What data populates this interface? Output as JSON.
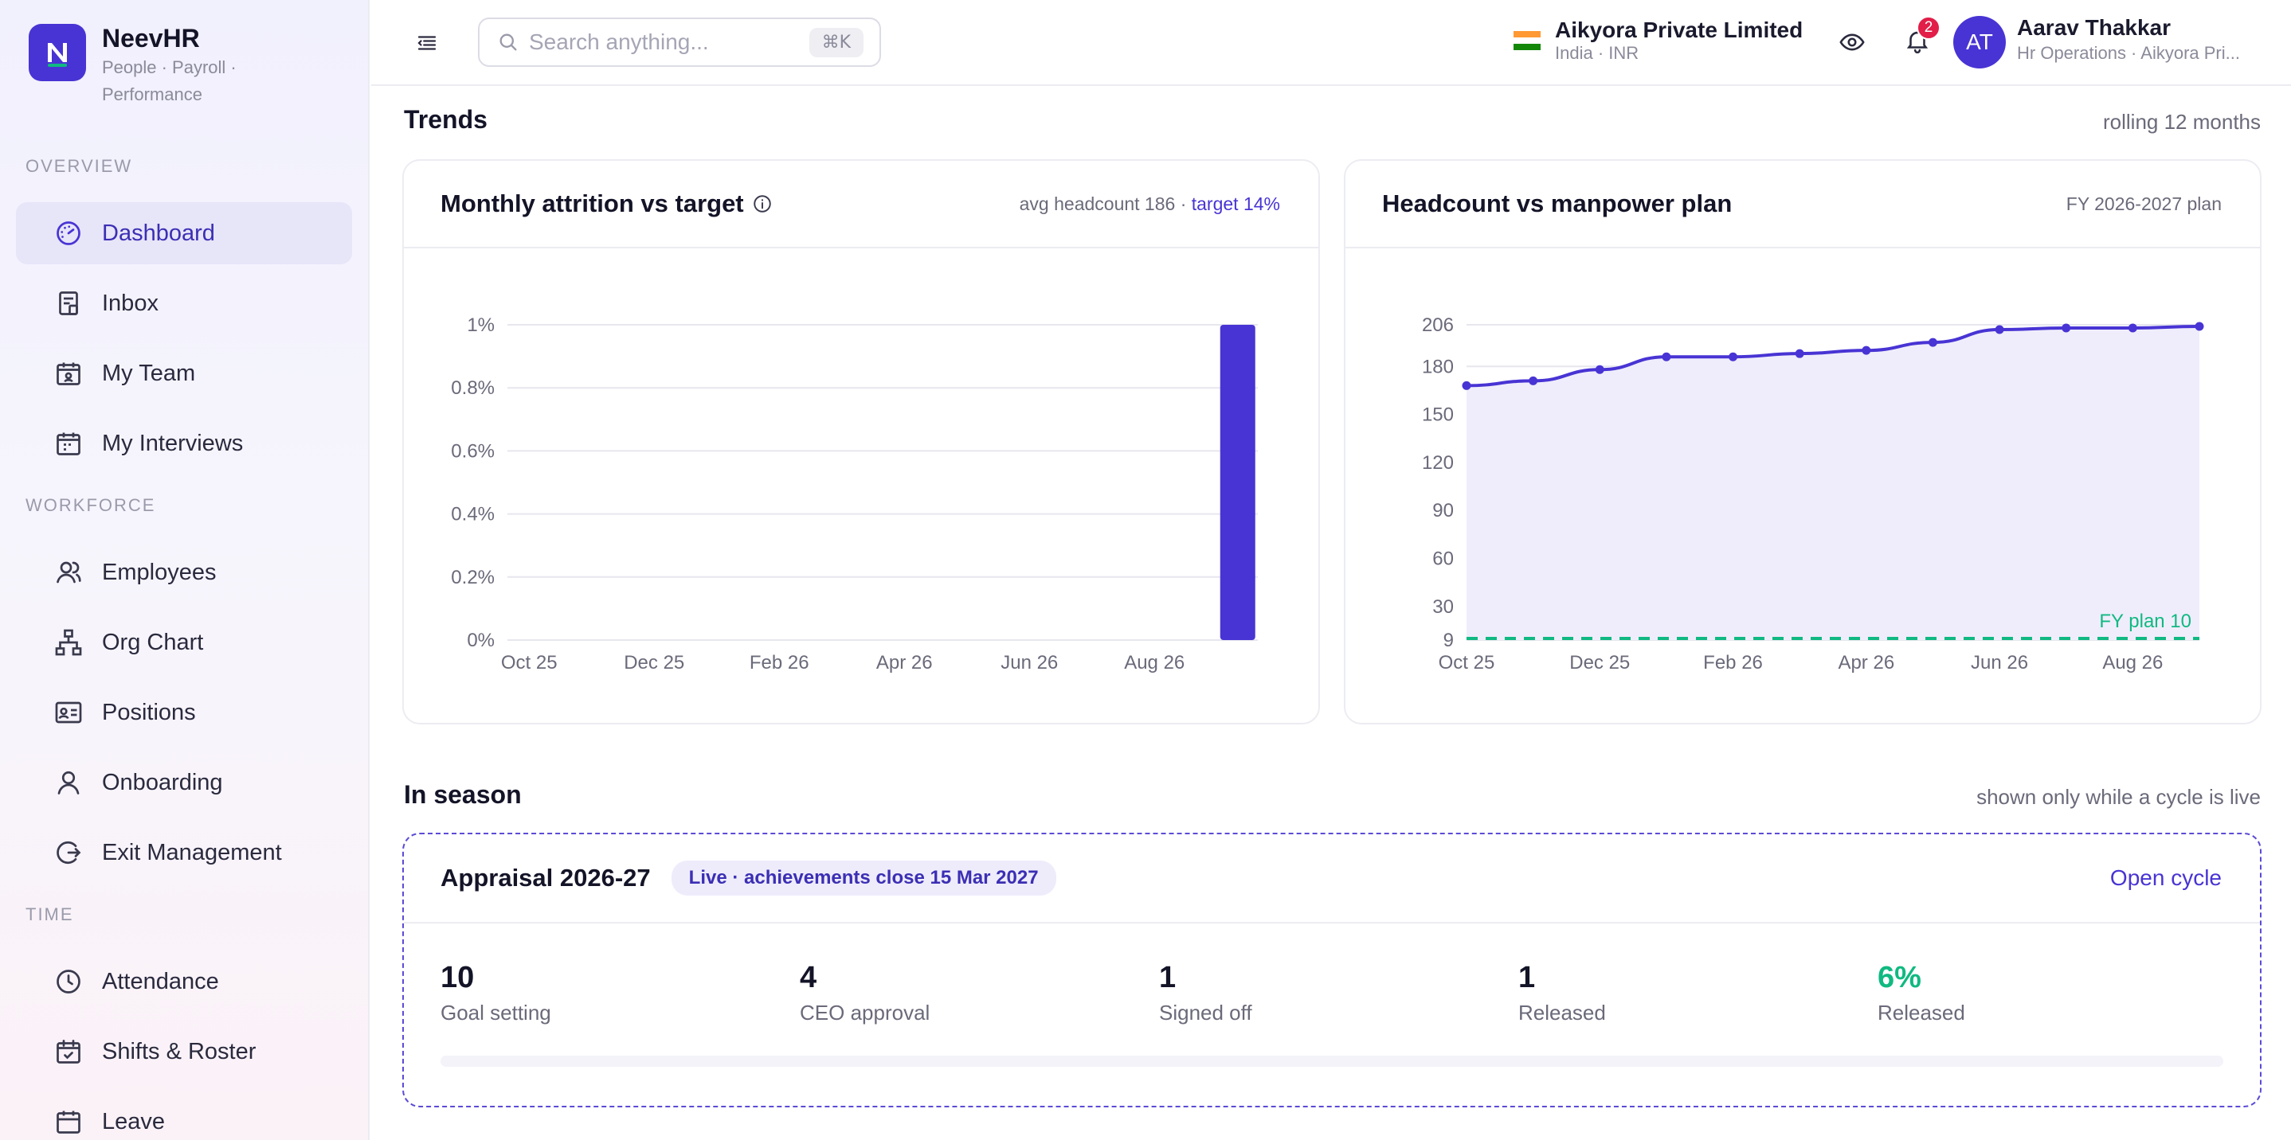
{
  "app": {
    "name": "NeevHR",
    "tagline": "People · Payroll · Performance"
  },
  "sidebar": {
    "sections": [
      {
        "label": "OVERVIEW",
        "items": [
          {
            "label": "Dashboard",
            "icon": "gauge-icon",
            "active": true
          },
          {
            "label": "Inbox",
            "icon": "inbox-icon"
          },
          {
            "label": "My Team",
            "icon": "team-calendar-icon"
          },
          {
            "label": "My Interviews",
            "icon": "interview-calendar-icon"
          }
        ]
      },
      {
        "label": "WORKFORCE",
        "items": [
          {
            "label": "Employees",
            "icon": "users-icon"
          },
          {
            "label": "Org Chart",
            "icon": "org-chart-icon"
          },
          {
            "label": "Positions",
            "icon": "id-card-icon"
          },
          {
            "label": "Onboarding",
            "icon": "user-icon"
          },
          {
            "label": "Exit Management",
            "icon": "exit-icon"
          }
        ]
      },
      {
        "label": "TIME",
        "items": [
          {
            "label": "Attendance",
            "icon": "clock-icon"
          },
          {
            "label": "Shifts & Roster",
            "icon": "calendar-check-icon"
          },
          {
            "label": "Leave",
            "icon": "calendar-icon"
          }
        ]
      }
    ]
  },
  "topbar": {
    "search_placeholder": "Search anything...",
    "shortcut": "⌘K",
    "org_name": "Aikyora Private Limited",
    "org_sub": "India · INR",
    "notifications": "2",
    "user_initials": "AT",
    "user_name": "Aarav Thakkar",
    "user_role": "Hr Operations · Aikyora Pri..."
  },
  "trends": {
    "title": "Trends",
    "note": "rolling 12 months",
    "attrition": {
      "title": "Monthly attrition vs target",
      "meta_avg": "avg headcount 186 · ",
      "meta_target": "target 14%"
    },
    "headcount": {
      "title": "Headcount vs manpower plan",
      "meta": "FY 2026-2027 plan",
      "plan_label": "FY plan 10"
    }
  },
  "chart_data": [
    {
      "type": "bar",
      "title": "Monthly attrition vs target",
      "categories": [
        "Oct 25",
        "Nov 25",
        "Dec 25",
        "Jan 26",
        "Feb 26",
        "Mar 26",
        "Apr 26",
        "May 26",
        "Jun 26",
        "Jul 26",
        "Aug 26",
        "Sep 26"
      ],
      "x_tick_labels": [
        "Oct 25",
        "Dec 25",
        "Feb 26",
        "Apr 26",
        "Jun 26",
        "Aug 26"
      ],
      "values": [
        0,
        0,
        0,
        0,
        0,
        0,
        0,
        0,
        0,
        0,
        0,
        1
      ],
      "y_ticks": [
        "0%",
        "0.2%",
        "0.4%",
        "0.6%",
        "0.8%",
        "1%"
      ],
      "ylim": [
        0,
        1
      ],
      "unit": "%",
      "color": "#4834d4",
      "grid": true
    },
    {
      "type": "area",
      "title": "Headcount vs manpower plan",
      "categories": [
        "Oct 25",
        "Nov 25",
        "Dec 25",
        "Jan 26",
        "Feb 26",
        "Mar 26",
        "Apr 26",
        "May 26",
        "Jun 26",
        "Jul 26",
        "Aug 26",
        "Sep 26"
      ],
      "x_tick_labels": [
        "Oct 25",
        "Dec 25",
        "Feb 26",
        "Apr 26",
        "Jun 26",
        "Aug 26"
      ],
      "series": [
        {
          "values": [
            168,
            171,
            178,
            186,
            186,
            188,
            190,
            195,
            203,
            204,
            204,
            205
          ]
        }
      ],
      "plan": 10,
      "y_ticks": [
        9,
        30,
        60,
        90,
        120,
        150,
        180,
        206
      ],
      "ylim": [
        9,
        206
      ],
      "color": "#4834d4",
      "plan_color": "#10b981",
      "grid": true
    }
  ],
  "season": {
    "title": "In season",
    "note": "shown only while a cycle is live",
    "cycle_title": "Appraisal 2026-27",
    "status": "Live · achievements close 15 Mar 2027",
    "open_label": "Open cycle",
    "stats": [
      {
        "value": "10",
        "label": "Goal setting"
      },
      {
        "value": "4",
        "label": "CEO approval"
      },
      {
        "value": "1",
        "label": "Signed off"
      },
      {
        "value": "1",
        "label": "Released"
      },
      {
        "value": "6%",
        "label": "Released",
        "accent": "#10b981"
      }
    ]
  }
}
